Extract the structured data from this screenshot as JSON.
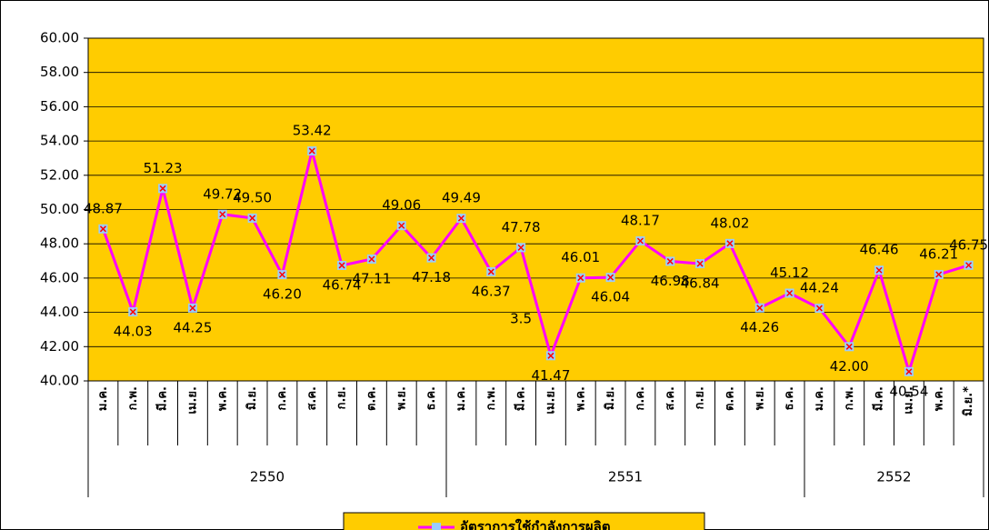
{
  "chart_data": {
    "type": "line",
    "groups": [
      {
        "label": "2550",
        "categories": [
          "ม.ค.",
          "ก.พ.",
          "มี.ค.",
          "เม.ย.",
          "พ.ค.",
          "มิ.ย.",
          "ก.ค.",
          "ส.ค.",
          "ก.ย.",
          "ต.ค.",
          "พ.ย.",
          "ธ.ค."
        ]
      },
      {
        "label": "2551",
        "categories": [
          "ม.ค.",
          "ก.พ.",
          "มี.ค.",
          "เม.ย.",
          "พ.ค.",
          "มิ.ย.",
          "ก.ค.",
          "ส.ค.",
          "ก.ย.",
          "ต.ค.",
          "พ.ย.",
          "ธ.ค."
        ]
      },
      {
        "label": "2552",
        "categories": [
          "ม.ค.",
          "ก.พ.",
          "มี.ค.",
          "เม.ย.",
          "พ.ค.",
          "มิ.ย.*"
        ]
      }
    ],
    "series": [
      {
        "name": "อัตราการใช้กำลังการผลิต",
        "color": "#ff00ff",
        "marker_color": "#99ccff",
        "values": [
          48.87,
          44.03,
          51.23,
          44.25,
          49.72,
          49.5,
          46.2,
          53.42,
          46.74,
          47.11,
          49.06,
          47.18,
          49.49,
          46.37,
          47.78,
          41.47,
          46.01,
          46.04,
          48.17,
          46.98,
          46.84,
          48.02,
          44.26,
          45.12,
          44.24,
          42,
          46.46,
          40.54,
          46.21,
          46.75
        ],
        "value_labels": [
          "48.87",
          "44.03",
          "51.23",
          "44.25",
          "49.72",
          "49.50",
          "46.20",
          "53.42",
          "46.74",
          "47.11",
          "49.06",
          "47.18",
          "49.49",
          "46.37",
          "47.78",
          "41.47",
          "46.01",
          "46.04",
          "48.17",
          "46.98",
          "46.84",
          "48.02",
          "44.26",
          "45.12",
          "44.24",
          "42.00",
          "46.46",
          "40.54",
          "46.21",
          "46.75"
        ]
      }
    ],
    "annotations": [
      "3.5"
    ],
    "ylim": [
      40,
      60
    ],
    "yticks": [
      {
        "value": 40,
        "label": "40.00"
      },
      {
        "value": 42,
        "label": "42.00"
      },
      {
        "value": 44,
        "label": "44.00"
      },
      {
        "value": 46,
        "label": "46.00"
      },
      {
        "value": 48,
        "label": "48.00"
      },
      {
        "value": 50,
        "label": "50.00"
      },
      {
        "value": 52,
        "label": "52.00"
      },
      {
        "value": 54,
        "label": "54.00"
      },
      {
        "value": 56,
        "label": "56.00"
      },
      {
        "value": 58,
        "label": "58.00"
      },
      {
        "value": 60,
        "label": "60.00"
      }
    ],
    "background": "#ffcc00",
    "grid": true,
    "legend": "bottom"
  }
}
